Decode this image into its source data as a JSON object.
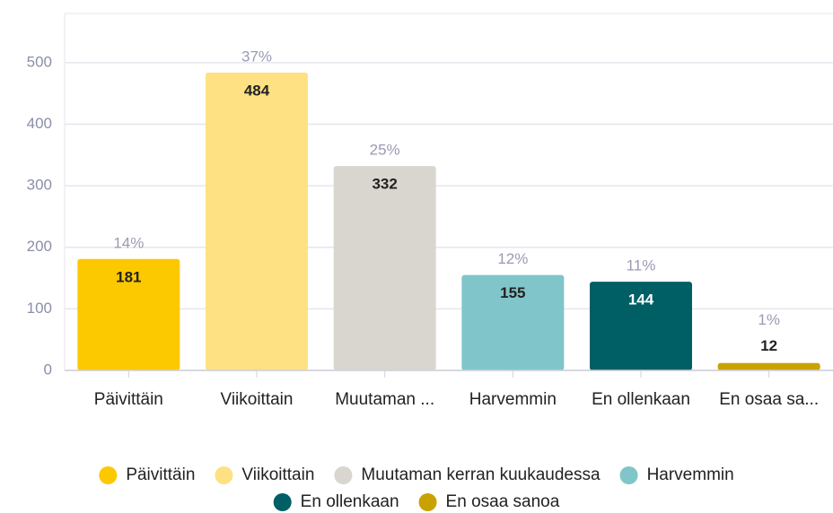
{
  "chart_data": {
    "type": "bar",
    "categories": [
      "Päivittäin",
      "Viikoittain",
      "Muutaman ...",
      "Harvemmin",
      "En ollenkaan",
      "En osaa sa..."
    ],
    "values": [
      181,
      484,
      332,
      155,
      144,
      12
    ],
    "percent_labels": [
      "14%",
      "37%",
      "25%",
      "12%",
      "11%",
      "1%"
    ],
    "colors": [
      "#fcc800",
      "#fde183",
      "#d8d6ce",
      "#80c5c9",
      "#005f65",
      "#c9a202"
    ],
    "legend": [
      "Päivittäin",
      "Viikoittain",
      "Muutaman kerran kuukaudessa",
      "Harvemmin",
      "En ollenkaan",
      "En osaa sanoa"
    ],
    "ylim": [
      0,
      580
    ],
    "yticks": [
      0,
      100,
      200,
      300,
      400,
      500
    ],
    "grid": true
  }
}
